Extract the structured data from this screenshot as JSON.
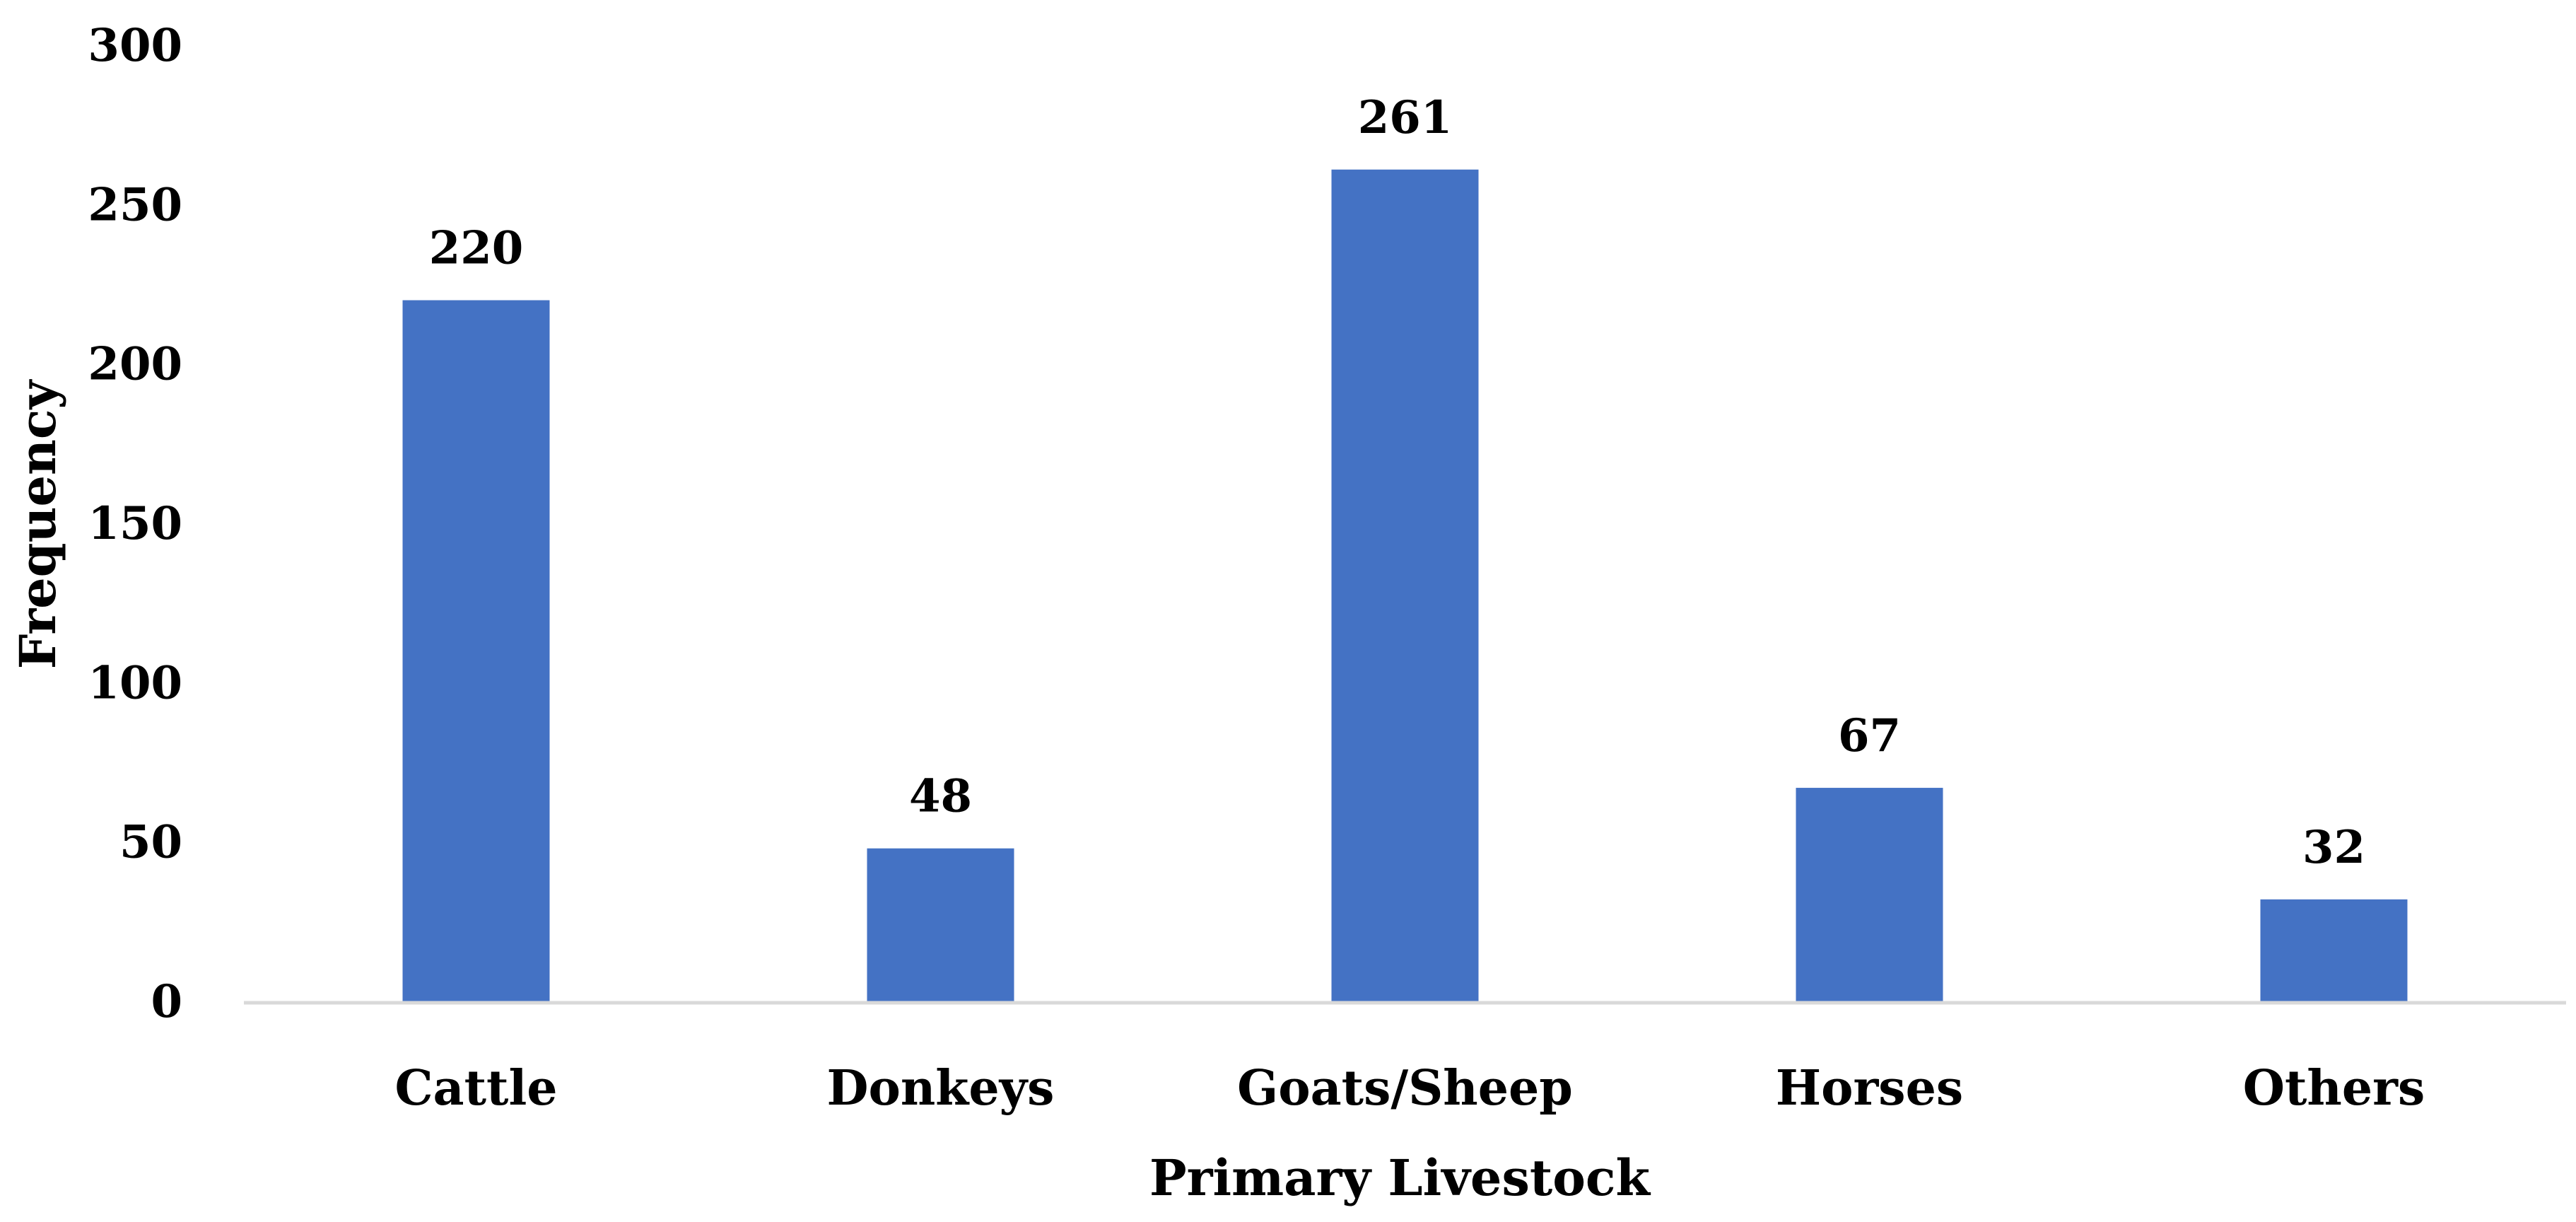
{
  "chart_data": {
    "type": "bar",
    "categories": [
      "Cattle",
      "Donkeys",
      "Goats/Sheep",
      "Horses",
      "Others"
    ],
    "values": [
      220,
      48,
      261,
      67,
      32
    ],
    "data_labels": [
      "220",
      "48",
      "261",
      "67",
      "32"
    ],
    "title": "",
    "xlabel": "Primary Livestock",
    "ylabel": "Frequency",
    "ylim": [
      0,
      300
    ],
    "yticks": [
      "0",
      "50",
      "100",
      "150",
      "200",
      "250",
      "300"
    ],
    "grid": false,
    "legend": "none",
    "colors": {
      "bar": "#4472C4",
      "axis": "#D9D9D9",
      "text": "#000000"
    }
  }
}
